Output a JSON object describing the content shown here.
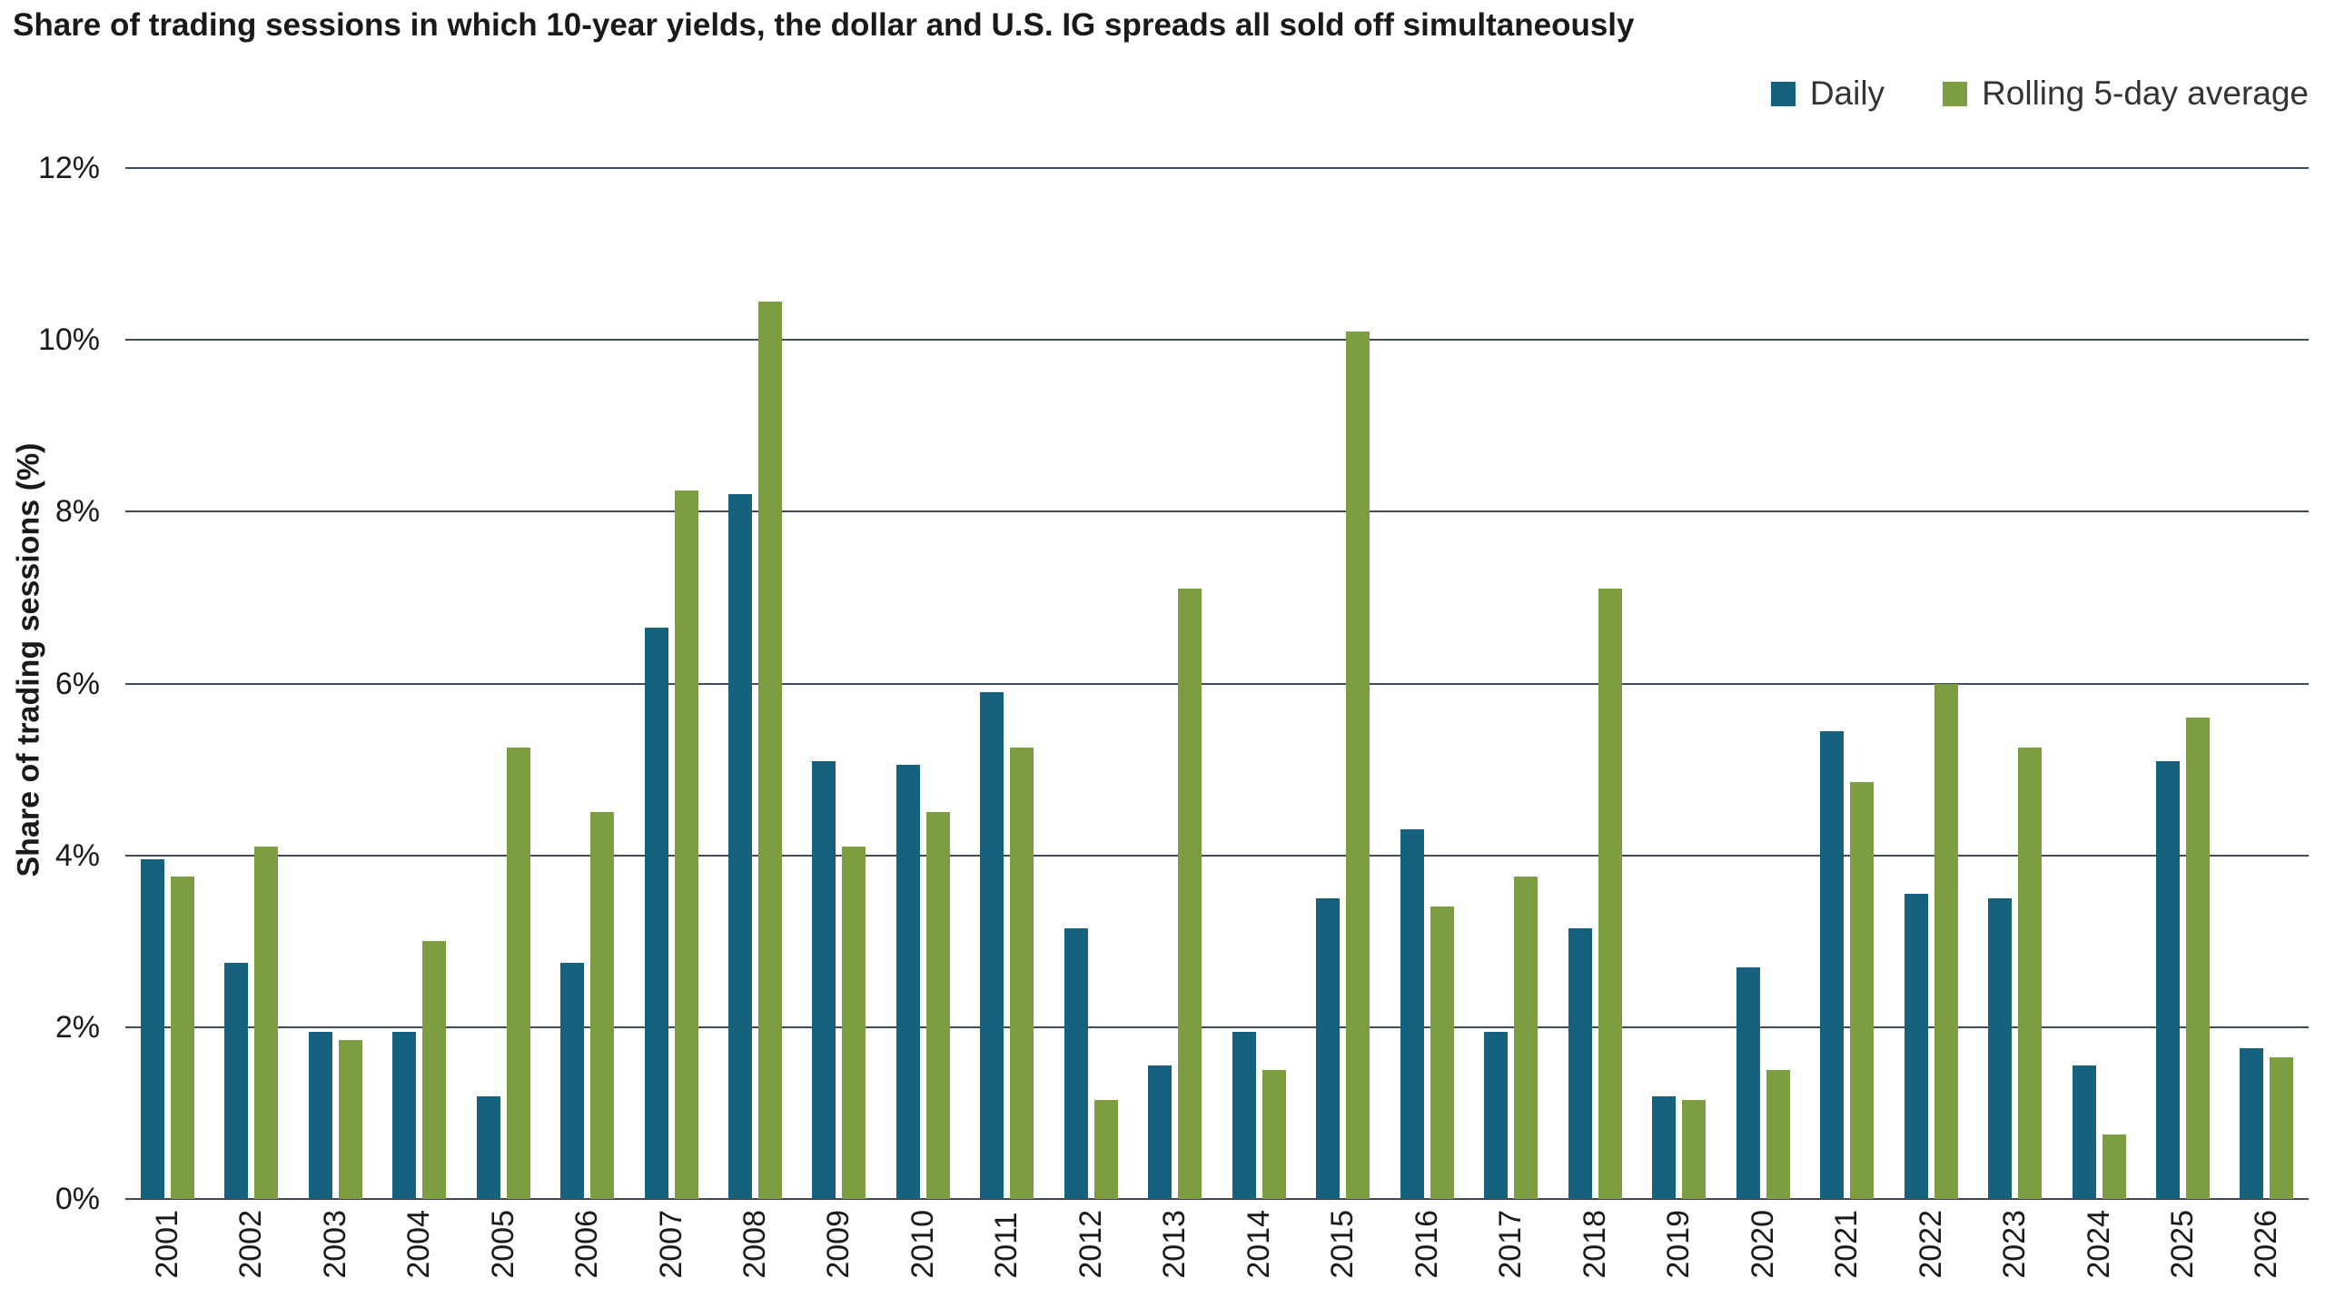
{
  "title": "Share of trading sessions in which 10-year yields, the dollar and U.S. IG spreads all sold off simultaneously",
  "legend": {
    "daily": "Daily",
    "rolling": "Rolling 5-day average"
  },
  "colors": {
    "daily": "#15617e",
    "rolling": "#7d9d41",
    "grid": "#3f4b58",
    "text": "#1a1a1a"
  },
  "chart_data": {
    "type": "bar",
    "title": "Share of trading sessions in which 10-year yields, the dollar and U.S. IG spreads all sold off simultaneously",
    "xlabel": "",
    "ylabel": "Share of trading sessions (%)",
    "ylim": [
      0,
      12
    ],
    "yticks": [
      0,
      2,
      4,
      6,
      8,
      10,
      12
    ],
    "ytick_labels": [
      "0%",
      "2%",
      "4%",
      "6%",
      "8%",
      "10%",
      "12%"
    ],
    "grid": true,
    "legend_position": "top-right",
    "categories": [
      "2001",
      "2002",
      "2003",
      "2004",
      "2005",
      "2006",
      "2007",
      "2008",
      "2009",
      "2010",
      "2011",
      "2012",
      "2013",
      "2014",
      "2015",
      "2016",
      "2017",
      "2018",
      "2019",
      "2020",
      "2021",
      "2022",
      "2023",
      "2024",
      "2025",
      "2026"
    ],
    "series": [
      {
        "name": "Daily",
        "color": "#15617e",
        "values": [
          3.95,
          2.75,
          1.95,
          1.95,
          1.2,
          2.75,
          6.65,
          8.2,
          5.1,
          5.05,
          5.9,
          3.15,
          1.55,
          1.95,
          3.5,
          4.3,
          1.95,
          3.15,
          1.2,
          2.7,
          5.45,
          3.55,
          3.5,
          1.55,
          5.1,
          1.75
        ]
      },
      {
        "name": "Rolling 5-day average",
        "color": "#7d9d41",
        "values": [
          3.75,
          4.1,
          1.85,
          3.0,
          5.25,
          4.5,
          8.25,
          10.45,
          4.1,
          4.5,
          5.25,
          1.15,
          7.1,
          1.5,
          10.1,
          3.4,
          3.75,
          7.1,
          1.15,
          1.5,
          4.85,
          6.0,
          5.25,
          0.75,
          5.6,
          1.65
        ]
      }
    ]
  }
}
